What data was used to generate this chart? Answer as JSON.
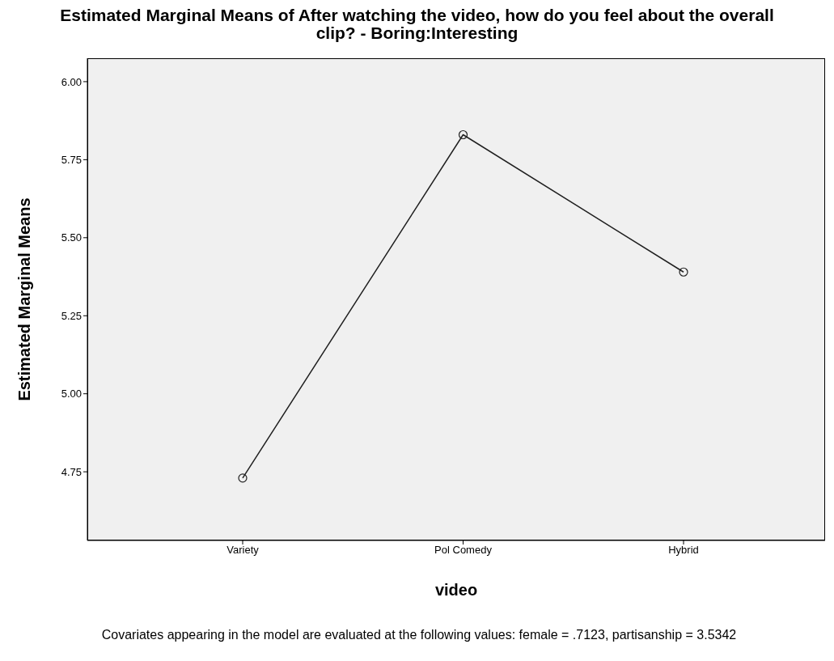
{
  "chart_data": {
    "type": "line",
    "title": "Estimated Marginal Means of After watching the video, how do you feel about the overall clip? - Boring:Interesting",
    "xlabel": "video",
    "ylabel": "Estimated Marginal Means",
    "categories": [
      "Variety",
      "Pol Comedy",
      "Hybrid"
    ],
    "series": [
      {
        "color": "#202020",
        "values": [
          4.73,
          5.83,
          5.39
        ]
      }
    ],
    "ylim": [
      4.53,
      6.075
    ],
    "yticks": [
      {
        "value": 4.75,
        "label": "4.75"
      },
      {
        "value": 5,
        "label": "5.00"
      },
      {
        "value": 5.25,
        "label": "5.25"
      },
      {
        "value": 5.5,
        "label": "5.50"
      },
      {
        "value": 5.75,
        "label": "5.75"
      },
      {
        "value": 6,
        "label": "6.00"
      }
    ],
    "grid": false,
    "marker": "circle",
    "line_style": "solid",
    "annotations": [
      "Covariates appearing in the model are evaluated at the following values: female = .7123, partisanship = 3.5342"
    ]
  }
}
